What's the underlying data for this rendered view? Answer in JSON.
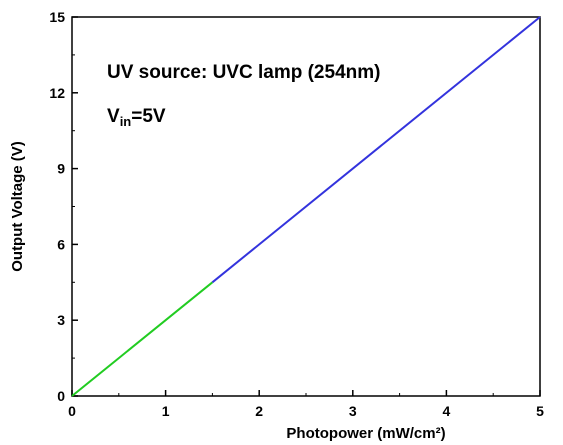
{
  "chart_data": {
    "type": "line",
    "xlabel": "Photopower (mW/cm²)",
    "ylabel": "Output Voltage (V)",
    "xlim": [
      0,
      5
    ],
    "ylim": [
      0,
      15
    ],
    "xticks": [
      "0",
      "1",
      "2",
      "3",
      "4",
      "5"
    ],
    "yticks": [
      "0",
      "3",
      "6",
      "9",
      "12",
      "15"
    ],
    "annotations": {
      "uv_source": "UV source: UVC lamp (254nm)",
      "vin_main": "V",
      "vin_sub": "in",
      "vin_value": "=5V"
    },
    "series": [
      {
        "color": "#22cc22",
        "x": [
          0,
          0.5,
          1.0,
          1.5
        ],
        "y": [
          0,
          1.5,
          3.0,
          4.5
        ]
      },
      {
        "color": "#3333dd",
        "x": [
          1.5,
          5.0
        ],
        "y": [
          4.5,
          15.0
        ]
      }
    ],
    "grid": false
  }
}
